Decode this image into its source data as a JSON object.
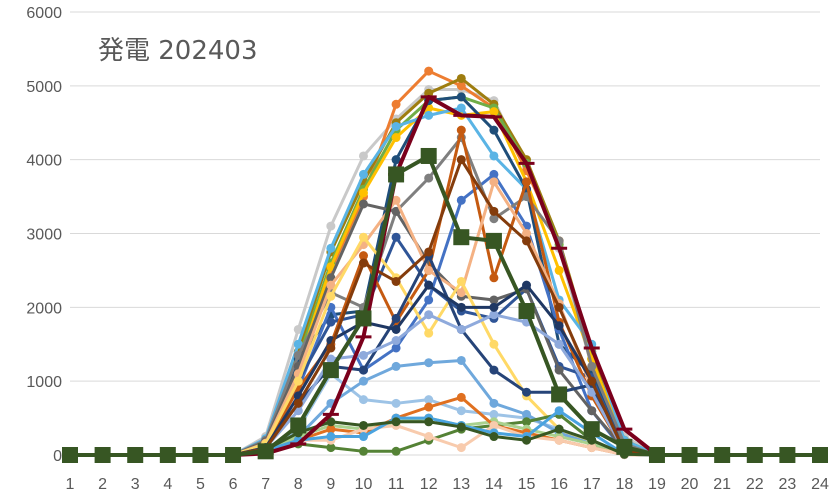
{
  "chart_data": {
    "type": "line",
    "title": "発電 202403",
    "xlabel": "",
    "ylabel": "",
    "x": [
      1,
      2,
      3,
      4,
      5,
      6,
      7,
      8,
      9,
      10,
      11,
      12,
      13,
      14,
      15,
      16,
      17,
      18,
      19,
      20,
      21,
      22,
      23,
      24
    ],
    "ylim": [
      0,
      6000
    ],
    "yticks": [
      0,
      1000,
      2000,
      3000,
      4000,
      5000,
      6000
    ],
    "grid": "horizontal",
    "legend": "none",
    "series": [
      {
        "color": "#c9c9c9",
        "marker": "circle",
        "values": [
          0,
          0,
          0,
          0,
          0,
          0,
          250,
          1700,
          3100,
          4050,
          4550,
          4950,
          4950,
          4800,
          3900,
          2800,
          1200,
          250,
          0,
          0,
          0,
          0,
          0,
          0
        ]
      },
      {
        "color": "#ed7d31",
        "marker": "circle",
        "values": [
          0,
          0,
          0,
          0,
          0,
          0,
          150,
          1100,
          2500,
          3500,
          4750,
          5200,
          5000,
          4700,
          3850,
          2900,
          1300,
          150,
          0,
          0,
          0,
          0,
          0,
          0
        ]
      },
      {
        "color": "#9e7d0f",
        "marker": "circle",
        "values": [
          0,
          0,
          0,
          0,
          0,
          0,
          200,
          1400,
          2750,
          3700,
          4500,
          4900,
          5100,
          4750,
          4000,
          2900,
          1400,
          200,
          0,
          0,
          0,
          0,
          0,
          0
        ]
      },
      {
        "color": "#70ad47",
        "marker": "circle",
        "values": [
          0,
          0,
          0,
          0,
          0,
          0,
          180,
          1300,
          2600,
          3600,
          4400,
          4800,
          4850,
          4700,
          3950,
          2850,
          1300,
          180,
          0,
          0,
          0,
          0,
          0,
          0
        ]
      },
      {
        "color": "#ffc000",
        "marker": "circle",
        "values": [
          0,
          0,
          0,
          0,
          0,
          0,
          170,
          1200,
          2550,
          3550,
          4300,
          4700,
          4600,
          4650,
          3700,
          2500,
          1300,
          170,
          0,
          0,
          0,
          0,
          0,
          0
        ]
      },
      {
        "color": "#5ab4e5",
        "marker": "circle",
        "values": [
          0,
          0,
          0,
          0,
          0,
          0,
          220,
          1500,
          2800,
          3800,
          4450,
          4600,
          4700,
          4050,
          3600,
          2100,
          1500,
          200,
          0,
          0,
          0,
          0,
          0,
          0
        ]
      },
      {
        "color": "#1f4e79",
        "marker": "circle",
        "values": [
          0,
          0,
          0,
          0,
          0,
          0,
          150,
          1300,
          1900,
          1950,
          4000,
          4800,
          4850,
          4400,
          3600,
          1500,
          1100,
          100,
          0,
          0,
          0,
          0,
          0,
          0
        ]
      },
      {
        "color": "#4472c4",
        "marker": "circle",
        "values": [
          0,
          0,
          0,
          0,
          0,
          0,
          150,
          900,
          2000,
          1150,
          1450,
          2100,
          3450,
          3800,
          3100,
          1700,
          600,
          50,
          0,
          0,
          0,
          0,
          0,
          0
        ]
      },
      {
        "color": "#2f5597",
        "marker": "circle",
        "values": [
          0,
          0,
          0,
          0,
          0,
          0,
          130,
          1000,
          1800,
          1900,
          2950,
          2300,
          1950,
          1850,
          2250,
          1200,
          1050,
          50,
          0,
          0,
          0,
          0,
          0,
          0
        ]
      },
      {
        "color": "#7f7f7f",
        "marker": "circle",
        "values": [
          0,
          0,
          0,
          0,
          0,
          0,
          200,
          1350,
          2200,
          2000,
          3300,
          3750,
          4300,
          3200,
          3500,
          2900,
          1200,
          150,
          0,
          0,
          0,
          0,
          0,
          0
        ]
      },
      {
        "color": "#636363",
        "marker": "circle",
        "values": [
          0,
          0,
          0,
          0,
          0,
          0,
          180,
          1200,
          2400,
          3400,
          3300,
          2600,
          2150,
          2100,
          2250,
          1150,
          600,
          80,
          0,
          0,
          0,
          0,
          0,
          0
        ]
      },
      {
        "color": "#c55a11",
        "marker": "circle",
        "values": [
          0,
          0,
          0,
          0,
          0,
          0,
          130,
          900,
          1500,
          2700,
          1800,
          2500,
          4400,
          2400,
          3700,
          1800,
          800,
          60,
          0,
          0,
          0,
          0,
          0,
          0
        ]
      },
      {
        "color": "#f4b183",
        "marker": "circle",
        "values": [
          0,
          0,
          0,
          0,
          0,
          0,
          160,
          1100,
          2300,
          2850,
          3450,
          2500,
          2200,
          3700,
          3000,
          2050,
          900,
          80,
          0,
          0,
          0,
          0,
          0,
          0
        ]
      },
      {
        "color": "#ffd966",
        "marker": "circle",
        "values": [
          0,
          0,
          0,
          0,
          0,
          0,
          150,
          1000,
          2150,
          2950,
          2400,
          1650,
          2350,
          1500,
          800,
          350,
          150,
          20,
          0,
          0,
          0,
          0,
          0,
          0
        ]
      },
      {
        "color": "#264478",
        "marker": "circle",
        "values": [
          0,
          0,
          0,
          0,
          0,
          0,
          100,
          700,
          1200,
          1150,
          1850,
          2700,
          1700,
          1150,
          850,
          850,
          950,
          30,
          0,
          0,
          0,
          0,
          0,
          0
        ]
      },
      {
        "color": "#9dc3e6",
        "marker": "circle",
        "values": [
          0,
          0,
          0,
          0,
          0,
          0,
          80,
          350,
          1100,
          750,
          700,
          750,
          600,
          550,
          500,
          350,
          200,
          20,
          0,
          0,
          0,
          0,
          0,
          0
        ]
      },
      {
        "color": "#8faadc",
        "marker": "circle",
        "values": [
          0,
          0,
          0,
          0,
          0,
          0,
          100,
          600,
          1300,
          1350,
          1550,
          1900,
          1700,
          1900,
          1800,
          1500,
          850,
          50,
          0,
          0,
          0,
          0,
          0,
          0
        ]
      },
      {
        "color": "#6fa8dc",
        "marker": "circle",
        "values": [
          0,
          0,
          0,
          0,
          0,
          0,
          60,
          250,
          700,
          1000,
          1200,
          1250,
          1280,
          700,
          550,
          300,
          150,
          10,
          0,
          0,
          0,
          0,
          0,
          0
        ]
      },
      {
        "color": "#548235",
        "marker": "circle",
        "values": [
          0,
          0,
          0,
          0,
          0,
          0,
          40,
          150,
          100,
          50,
          50,
          200,
          350,
          400,
          450,
          550,
          200,
          10,
          0,
          0,
          0,
          0,
          0,
          0
        ]
      },
      {
        "color": "#a9d18e",
        "marker": "circle",
        "values": [
          0,
          0,
          0,
          0,
          0,
          0,
          60,
          250,
          400,
          350,
          450,
          500,
          400,
          450,
          350,
          250,
          150,
          10,
          0,
          0,
          0,
          0,
          0,
          0
        ]
      },
      {
        "color": "#e07020",
        "marker": "circle",
        "values": [
          0,
          0,
          0,
          0,
          0,
          0,
          50,
          200,
          350,
          300,
          500,
          650,
          780,
          400,
          300,
          200,
          100,
          5,
          0,
          0,
          0,
          0,
          0,
          0
        ]
      },
      {
        "color": "#f8cbad",
        "marker": "circle",
        "values": [
          0,
          0,
          0,
          0,
          0,
          0,
          40,
          200,
          200,
          350,
          400,
          250,
          100,
          400,
          250,
          200,
          100,
          5,
          0,
          0,
          0,
          0,
          0,
          0
        ]
      },
      {
        "color": "#4aa3df",
        "marker": "circle",
        "values": [
          0,
          0,
          0,
          0,
          0,
          0,
          60,
          200,
          250,
          250,
          500,
          500,
          400,
          300,
          250,
          600,
          300,
          10,
          0,
          0,
          0,
          0,
          0,
          0
        ]
      },
      {
        "color": "#1f3864",
        "marker": "circle",
        "values": [
          0,
          0,
          0,
          0,
          0,
          0,
          100,
          800,
          1550,
          1800,
          1700,
          2300,
          2000,
          2000,
          2300,
          1750,
          1000,
          50,
          0,
          0,
          0,
          0,
          0,
          0
        ]
      },
      {
        "color": "#843c0c",
        "marker": "circle",
        "values": [
          0,
          0,
          0,
          0,
          0,
          0,
          90,
          700,
          1450,
          2600,
          2350,
          2750,
          4000,
          3300,
          2900,
          2000,
          1000,
          50,
          0,
          0,
          0,
          0,
          0,
          0
        ]
      },
      {
        "color": "#385723",
        "marker": "circle",
        "values": [
          0,
          0,
          0,
          0,
          0,
          0,
          70,
          300,
          450,
          400,
          450,
          450,
          380,
          250,
          200,
          350,
          200,
          10,
          0,
          0,
          0,
          0,
          0,
          0
        ]
      },
      {
        "color": "#7b001c",
        "marker": "dash",
        "values": [
          0,
          0,
          0,
          0,
          0,
          0,
          20,
          150,
          550,
          1600,
          3800,
          4850,
          4600,
          4580,
          3950,
          2800,
          1450,
          350,
          0,
          0,
          0,
          0,
          0,
          0
        ]
      },
      {
        "color": "#375623",
        "marker": "square",
        "values": [
          0,
          0,
          0,
          0,
          0,
          0,
          50,
          400,
          1150,
          1850,
          3800,
          4050,
          2950,
          2900,
          1950,
          820,
          350,
          110,
          0,
          0,
          0,
          0,
          0,
          0
        ]
      }
    ]
  }
}
